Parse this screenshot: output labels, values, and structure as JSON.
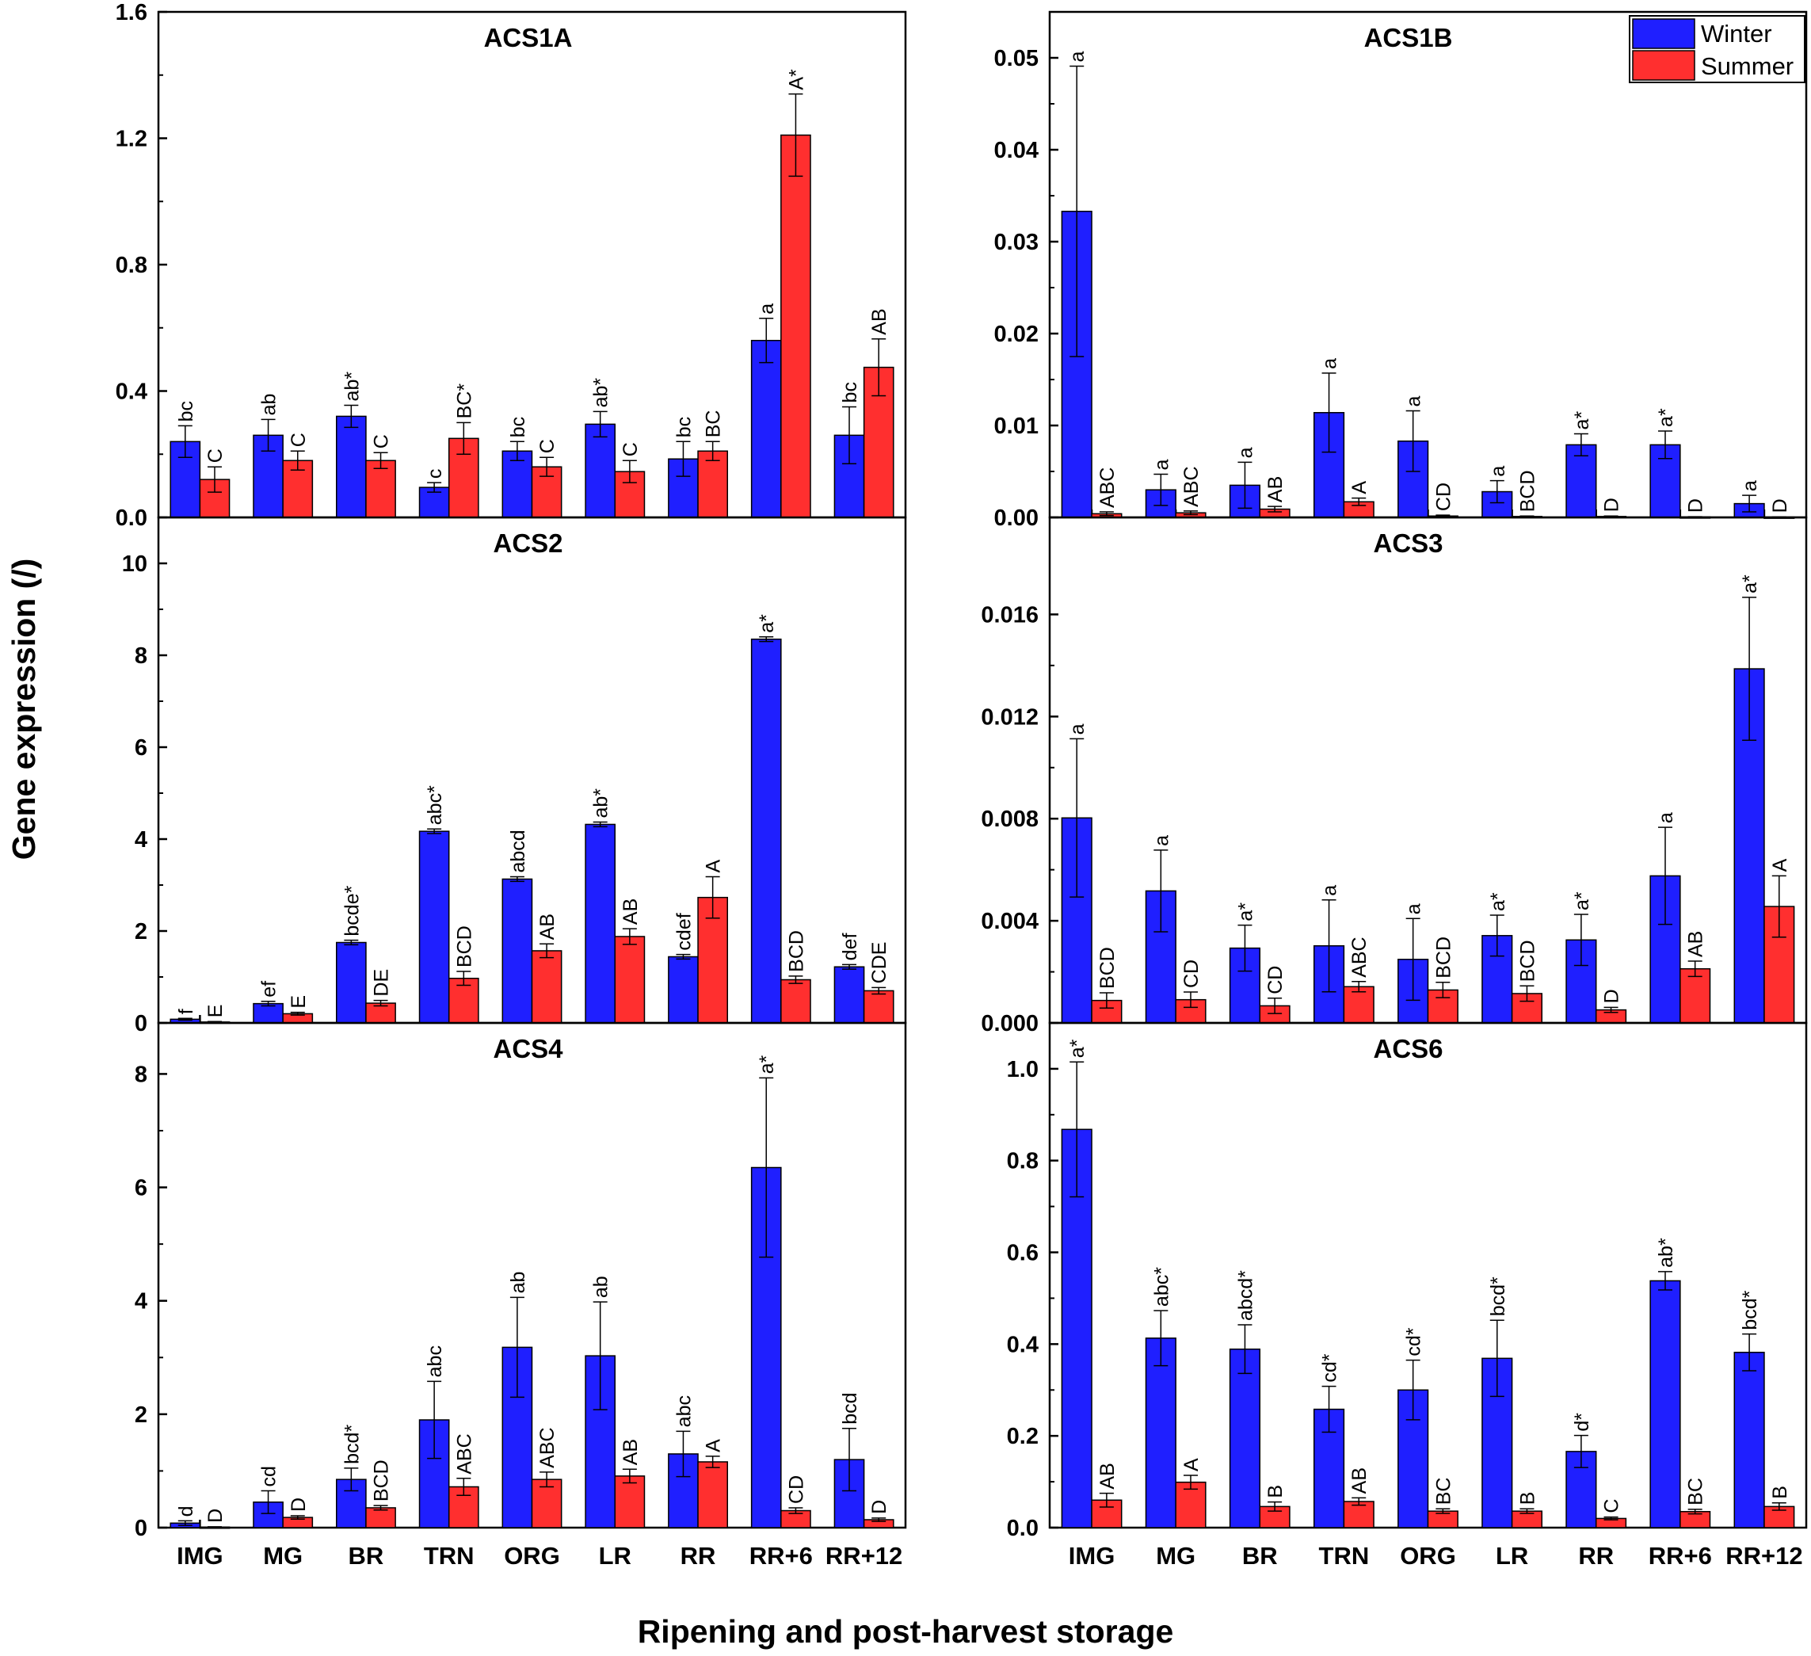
{
  "figure": {
    "ylabel": "Gene expression (/)",
    "xlabel": "Ripening and post-harvest storage",
    "categories": [
      "IMG",
      "MG",
      "BR",
      "TRN",
      "ORG",
      "LR",
      "RR",
      "RR+6",
      "RR+12"
    ]
  },
  "legend": {
    "entries": [
      {
        "name": "Winter",
        "color": "#1f1fff"
      },
      {
        "name": "Summer",
        "color": "#ff2f2f"
      }
    ],
    "placement": "top-right of ACS1B panel"
  },
  "chart_data": [
    {
      "type": "bar",
      "title": "ACS1A",
      "ylim": [
        0,
        1.6
      ],
      "yticks": [
        "0.0",
        "0.4",
        "0.8",
        "1.2",
        "1.6"
      ],
      "ytick_values": [
        0,
        0.4,
        0.8,
        1.2,
        1.6
      ],
      "categories": [
        "IMG",
        "MG",
        "BR",
        "TRN",
        "ORG",
        "LR",
        "RR",
        "RR+6",
        "RR+12"
      ],
      "series": [
        {
          "name": "Winter",
          "values": [
            0.24,
            0.26,
            0.32,
            0.095,
            0.21,
            0.295,
            0.185,
            0.56,
            0.26
          ],
          "errors": [
            0.05,
            0.05,
            0.035,
            0.015,
            0.03,
            0.04,
            0.055,
            0.07,
            0.09
          ],
          "labels": [
            "bc",
            "ab",
            "ab*",
            "c",
            "bc",
            "ab*",
            "bc",
            "a",
            "bc"
          ]
        },
        {
          "name": "Summer",
          "values": [
            0.12,
            0.18,
            0.18,
            0.25,
            0.16,
            0.145,
            0.21,
            1.21,
            0.475
          ],
          "errors": [
            0.04,
            0.03,
            0.025,
            0.05,
            0.03,
            0.035,
            0.03,
            0.13,
            0.09
          ],
          "labels": [
            "C",
            "C",
            "C",
            "BC*",
            "C",
            "C",
            "BC",
            "A*",
            "AB"
          ]
        }
      ]
    },
    {
      "type": "bar",
      "title": "ACS1B",
      "ylim": [
        0,
        0.055
      ],
      "yticks": [
        "0.00",
        "0.01",
        "0.02",
        "0.03",
        "0.04",
        "0.05"
      ],
      "ytick_values": [
        0,
        0.01,
        0.02,
        0.03,
        0.04,
        0.05
      ],
      "categories": [
        "IMG",
        "MG",
        "BR",
        "TRN",
        "ORG",
        "LR",
        "RR",
        "RR+6",
        "RR+12"
      ],
      "series": [
        {
          "name": "Winter",
          "values": [
            0.0333,
            0.003,
            0.0035,
            0.0114,
            0.0083,
            0.0028,
            0.0079,
            0.0079,
            0.0015
          ],
          "errors": [
            0.0158,
            0.0017,
            0.0025,
            0.0043,
            0.0033,
            0.0012,
            0.0012,
            0.0015,
            0.0009
          ],
          "labels": [
            "a",
            "a",
            "a",
            "a",
            "a",
            "a",
            "a*",
            "a*",
            "a"
          ]
        },
        {
          "name": "Summer",
          "values": [
            0.0004,
            0.0005,
            0.0009,
            0.0017,
            0.00015,
            0.0001,
            0.0001,
            5e-05,
            3e-05
          ],
          "errors": [
            0.0002,
            0.0002,
            0.0003,
            0.0004,
            0.0001,
            5e-05,
            5e-05,
            3e-05,
            2e-05
          ],
          "labels": [
            "ABC",
            "ABC",
            "AB",
            "A",
            "CD",
            "BCD",
            "D",
            "D",
            "D"
          ]
        }
      ]
    },
    {
      "type": "bar",
      "title": "ACS2",
      "ylim": [
        0,
        11
      ],
      "yticks": [
        "0",
        "2",
        "4",
        "6",
        "8",
        "10"
      ],
      "ytick_values": [
        0,
        2,
        4,
        6,
        8,
        10
      ],
      "categories": [
        "IMG",
        "MG",
        "BR",
        "TRN",
        "ORG",
        "LR",
        "RR",
        "RR+6",
        "RR+12"
      ],
      "series": [
        {
          "name": "Winter",
          "values": [
            0.08,
            0.42,
            1.75,
            4.17,
            3.13,
            4.32,
            1.44,
            8.35,
            1.22
          ],
          "errors": [
            0.02,
            0.05,
            0.05,
            0.05,
            0.05,
            0.05,
            0.05,
            0.05,
            0.05
          ],
          "labels": [
            "f",
            "ef",
            "bcde*",
            "abc*",
            "abcd",
            "ab*",
            "cdef",
            "a*",
            "def"
          ]
        },
        {
          "name": "Summer",
          "values": [
            0.02,
            0.2,
            0.43,
            0.97,
            1.57,
            1.88,
            2.73,
            0.94,
            0.7
          ],
          "errors": [
            0.01,
            0.03,
            0.06,
            0.15,
            0.15,
            0.17,
            0.45,
            0.08,
            0.07
          ],
          "labels": [
            "E",
            "E",
            "DE",
            "BCD",
            "AB",
            "AB",
            "A",
            "BCD",
            "CDE"
          ]
        }
      ]
    },
    {
      "type": "bar",
      "title": "ACS3",
      "ylim": [
        0,
        0.0198
      ],
      "yticks": [
        "0.000",
        "0.004",
        "0.008",
        "0.012",
        "0.016"
      ],
      "ytick_values": [
        0,
        0.004,
        0.008,
        0.012,
        0.016
      ],
      "categories": [
        "IMG",
        "MG",
        "BR",
        "TRN",
        "ORG",
        "LR",
        "RR",
        "RR+6",
        "RR+12"
      ],
      "series": [
        {
          "name": "Winter",
          "values": [
            0.00803,
            0.00517,
            0.00293,
            0.00302,
            0.00249,
            0.00342,
            0.00325,
            0.00576,
            0.01387
          ],
          "errors": [
            0.0031,
            0.0016,
            0.0009,
            0.0018,
            0.0016,
            0.0008,
            0.001,
            0.0019,
            0.0028
          ],
          "labels": [
            "a",
            "a",
            "a*",
            "a",
            "a",
            "a*",
            "a*",
            "a",
            "a*"
          ]
        },
        {
          "name": "Summer",
          "values": [
            0.00088,
            0.00091,
            0.00067,
            0.00142,
            0.00129,
            0.00115,
            0.00051,
            0.00212,
            0.00456
          ],
          "errors": [
            0.0003,
            0.0003,
            0.0003,
            0.0002,
            0.0003,
            0.0003,
            0.0001,
            0.0003,
            0.0012
          ],
          "labels": [
            "BCD",
            "CD",
            "CD",
            "ABC",
            "BCD",
            "BCD",
            "D",
            "AB",
            "A"
          ]
        }
      ]
    },
    {
      "type": "bar",
      "title": "ACS4",
      "ylim": [
        0,
        8.9
      ],
      "yticks": [
        "0",
        "2",
        "4",
        "6",
        "8"
      ],
      "ytick_values": [
        0,
        2,
        4,
        6,
        8
      ],
      "categories": [
        "IMG",
        "MG",
        "BR",
        "TRN",
        "ORG",
        "LR",
        "RR",
        "RR+6",
        "RR+12"
      ],
      "series": [
        {
          "name": "Winter",
          "values": [
            0.08,
            0.45,
            0.85,
            1.9,
            3.18,
            3.03,
            1.3,
            6.35,
            1.2
          ],
          "errors": [
            0.04,
            0.2,
            0.2,
            0.68,
            0.88,
            0.95,
            0.4,
            1.58,
            0.55
          ],
          "labels": [
            "d",
            "cd",
            "bcd*",
            "abc",
            "ab",
            "ab",
            "abc",
            "a*",
            "bcd"
          ]
        },
        {
          "name": "Summer",
          "values": [
            0.01,
            0.18,
            0.35,
            0.72,
            0.85,
            0.91,
            1.16,
            0.3,
            0.14
          ],
          "errors": [
            0.005,
            0.03,
            0.04,
            0.15,
            0.13,
            0.12,
            0.1,
            0.05,
            0.03
          ],
          "labels": [
            "D",
            "D",
            "BCD",
            "ABC",
            "ABC",
            "AB",
            "A",
            "CD",
            "D"
          ]
        }
      ]
    },
    {
      "type": "bar",
      "title": "ACS6",
      "ylim": [
        0,
        1.1
      ],
      "yticks": [
        "0.0",
        "0.2",
        "0.4",
        "0.6",
        "0.8",
        "1.0"
      ],
      "ytick_values": [
        0,
        0.2,
        0.4,
        0.6,
        0.8,
        1.0
      ],
      "categories": [
        "IMG",
        "MG",
        "BR",
        "TRN",
        "ORG",
        "LR",
        "RR",
        "RR+6",
        "RR+12"
      ],
      "series": [
        {
          "name": "Winter",
          "values": [
            0.868,
            0.413,
            0.389,
            0.258,
            0.3,
            0.369,
            0.166,
            0.538,
            0.382
          ],
          "errors": [
            0.147,
            0.06,
            0.053,
            0.05,
            0.065,
            0.083,
            0.035,
            0.02,
            0.04
          ],
          "labels": [
            "a*",
            "abc*",
            "abcd*",
            "cd*",
            "cd*",
            "bcd*",
            "d*",
            "ab*",
            "bcd*"
          ]
        },
        {
          "name": "Summer",
          "values": [
            0.06,
            0.099,
            0.046,
            0.057,
            0.036,
            0.036,
            0.02,
            0.035,
            0.046
          ],
          "errors": [
            0.015,
            0.015,
            0.01,
            0.008,
            0.005,
            0.005,
            0.003,
            0.005,
            0.008
          ],
          "labels": [
            "AB",
            "A",
            "B",
            "AB",
            "BC",
            "B",
            "C",
            "BC",
            "B"
          ]
        }
      ]
    }
  ]
}
